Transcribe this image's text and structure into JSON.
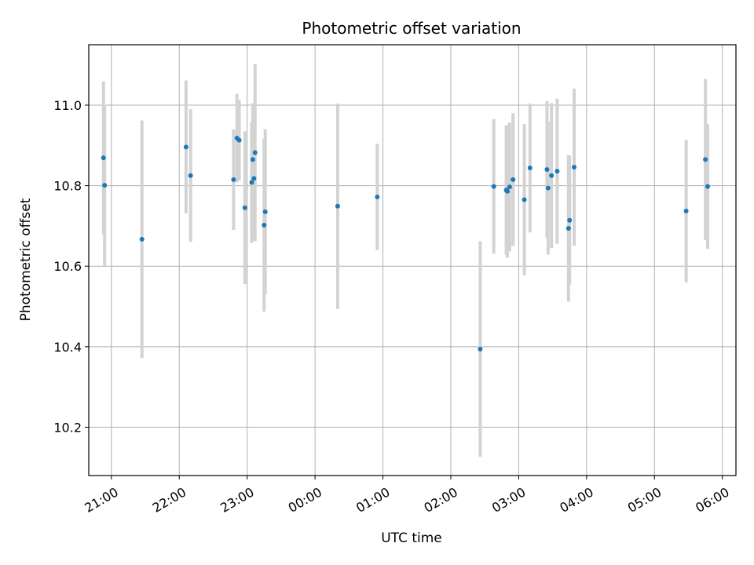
{
  "chart_data": {
    "type": "scatter",
    "title": "Photometric offset variation",
    "xlabel": "UTC time",
    "ylabel": "Photometric offset",
    "x_unit": "UTC hh:mm, crossing midnight from day 1 (20:xx–23:xx) into day 2 (00:xx–06:xx)",
    "xlim": [
      "20:40",
      "06:12"
    ],
    "ylim": [
      10.08,
      11.15
    ],
    "x_ticks": [
      "21:00",
      "22:00",
      "23:00",
      "00:00",
      "01:00",
      "02:00",
      "03:00",
      "04:00",
      "05:00",
      "06:00"
    ],
    "y_ticks": [
      10.2,
      10.4,
      10.6,
      10.8,
      11.0
    ],
    "grid": true,
    "colors": {
      "point": "#1f77b4",
      "errorbar": "#d3d3d3",
      "grid": "#b0b0b0"
    },
    "points": [
      {
        "t": "20:53",
        "y": 10.869,
        "err": 0.19
      },
      {
        "t": "20:54",
        "y": 10.801,
        "err": 0.2
      },
      {
        "t": "21:27",
        "y": 10.667,
        "err": 0.295
      },
      {
        "t": "22:06",
        "y": 10.896,
        "err": 0.165
      },
      {
        "t": "22:10",
        "y": 10.825,
        "err": 0.165
      },
      {
        "t": "22:48",
        "y": 10.815,
        "err": 0.125
      },
      {
        "t": "22:51",
        "y": 10.918,
        "err": 0.11
      },
      {
        "t": "22:53",
        "y": 10.913,
        "err": 0.1
      },
      {
        "t": "22:58",
        "y": 10.745,
        "err": 0.19
      },
      {
        "t": "23:04",
        "y": 10.808,
        "err": 0.15
      },
      {
        "t": "23:05",
        "y": 10.865,
        "err": 0.14
      },
      {
        "t": "23:06",
        "y": 10.818,
        "err": 0.15
      },
      {
        "t": "23:07",
        "y": 10.882,
        "err": 0.22
      },
      {
        "t": "23:15",
        "y": 10.702,
        "err": 0.215
      },
      {
        "t": "23:16",
        "y": 10.735,
        "err": 0.205
      },
      {
        "t": "00:20",
        "y": 10.749,
        "err": 0.255
      },
      {
        "t": "00:55",
        "y": 10.772,
        "err": 0.132
      },
      {
        "t": "02:26",
        "y": 10.394,
        "err": 0.268
      },
      {
        "t": "02:38",
        "y": 10.798,
        "err": 0.167
      },
      {
        "t": "02:49",
        "y": 10.789,
        "err": 0.16
      },
      {
        "t": "02:50",
        "y": 10.786,
        "err": 0.165
      },
      {
        "t": "02:52",
        "y": 10.797,
        "err": 0.16
      },
      {
        "t": "02:55",
        "y": 10.815,
        "err": 0.165
      },
      {
        "t": "03:05",
        "y": 10.765,
        "err": 0.188
      },
      {
        "t": "03:10",
        "y": 10.844,
        "err": 0.16
      },
      {
        "t": "03:25",
        "y": 10.84,
        "err": 0.17
      },
      {
        "t": "03:26",
        "y": 10.794,
        "err": 0.165
      },
      {
        "t": "03:29",
        "y": 10.825,
        "err": 0.18
      },
      {
        "t": "03:34",
        "y": 10.836,
        "err": 0.18
      },
      {
        "t": "03:44",
        "y": 10.694,
        "err": 0.182
      },
      {
        "t": "03:45",
        "y": 10.714,
        "err": 0.16
      },
      {
        "t": "03:49",
        "y": 10.846,
        "err": 0.195
      },
      {
        "t": "05:28",
        "y": 10.737,
        "err": 0.177
      },
      {
        "t": "05:45",
        "y": 10.865,
        "err": 0.2
      },
      {
        "t": "05:47",
        "y": 10.798,
        "err": 0.155
      }
    ]
  }
}
